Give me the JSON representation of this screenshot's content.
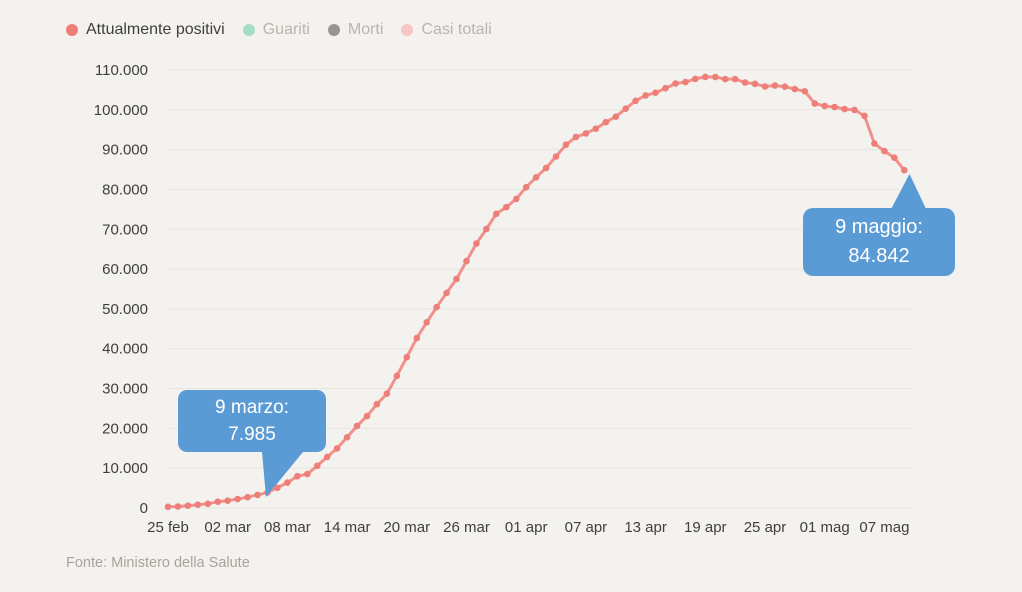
{
  "legend": {
    "items": [
      {
        "label": "Attualmente positivi",
        "dot_color": "#ee7e78",
        "label_color": "#403f3c",
        "active": true
      },
      {
        "label": "Guariti",
        "dot_color": "#a5dcc8",
        "label_color": "#b9b5ad",
        "active": false
      },
      {
        "label": "Morti",
        "dot_color": "#97958e",
        "label_color": "#b9b5ad",
        "active": false
      },
      {
        "label": "Casi totali",
        "dot_color": "#f6c6c3",
        "label_color": "#b9b5ad",
        "active": false
      }
    ]
  },
  "tooltips": [
    {
      "line1": "9 marzo:",
      "line2": "7.985"
    },
    {
      "line1": "9 maggio:",
      "line2": "84.842"
    }
  ],
  "footer": {
    "source": "Fonte: Ministero della Salute"
  },
  "colors": {
    "line": "#f1908c",
    "marker": "#ee7e78",
    "grid": "#e8e5de",
    "tooltip": "#5b9bd5",
    "background": "#f4f2ee",
    "axis_text": "#403f3c"
  },
  "chart_data": {
    "type": "line",
    "title": "",
    "xlabel": "",
    "ylabel": "",
    "ylim": [
      0,
      110000
    ],
    "grid": "horizontal",
    "legend_position": "top-left",
    "y_tick_values": [
      0,
      10000,
      20000,
      30000,
      40000,
      50000,
      60000,
      70000,
      80000,
      90000,
      100000,
      110000
    ],
    "y_tick_labels": [
      "0",
      "10.000",
      "20.000",
      "30.000",
      "40.000",
      "50.000",
      "60.000",
      "70.000",
      "80.000",
      "90.000",
      "100.000",
      "110.000"
    ],
    "x_tick_labels": [
      "25 feb",
      "02 mar",
      "08 mar",
      "14 mar",
      "20 mar",
      "26 mar",
      "01 apr",
      "07 apr",
      "13 apr",
      "19 apr",
      "25 apr",
      "01 mag",
      "07 mag"
    ],
    "x_tick_day_index": [
      0,
      6,
      12,
      18,
      24,
      30,
      36,
      42,
      48,
      54,
      60,
      66,
      72
    ],
    "dates": [
      "25 feb",
      "26 feb",
      "27 feb",
      "28 feb",
      "29 feb",
      "01 mar",
      "02 mar",
      "03 mar",
      "04 mar",
      "05 mar",
      "06 mar",
      "07 mar",
      "08 mar",
      "09 mar",
      "10 mar",
      "11 mar",
      "12 mar",
      "13 mar",
      "14 mar",
      "15 mar",
      "16 mar",
      "17 mar",
      "18 mar",
      "19 mar",
      "20 mar",
      "21 mar",
      "22 mar",
      "23 mar",
      "24 mar",
      "25 mar",
      "26 mar",
      "27 mar",
      "28 mar",
      "29 mar",
      "30 mar",
      "31 mar",
      "01 apr",
      "02 apr",
      "03 apr",
      "04 apr",
      "05 apr",
      "06 apr",
      "07 apr",
      "08 apr",
      "09 apr",
      "10 apr",
      "11 apr",
      "12 apr",
      "13 apr",
      "14 apr",
      "15 apr",
      "16 apr",
      "17 apr",
      "18 apr",
      "19 apr",
      "20 apr",
      "21 apr",
      "22 apr",
      "23 apr",
      "24 apr",
      "25 apr",
      "26 apr",
      "27 apr",
      "28 apr",
      "29 apr",
      "30 apr",
      "01 mag",
      "02 mag",
      "03 mag",
      "04 mag",
      "05 mag",
      "06 mag",
      "07 mag",
      "08 mag",
      "09 mag"
    ],
    "series": [
      {
        "name": "Attualmente positivi",
        "values": [
          311,
          385,
          588,
          821,
          1049,
          1577,
          1835,
          2263,
          2706,
          3296,
          3916,
          5061,
          6387,
          7985,
          8514,
          10590,
          12839,
          14955,
          17750,
          20603,
          23073,
          26062,
          28710,
          33190,
          37860,
          42681,
          46638,
          50418,
          54030,
          57521,
          62013,
          66414,
          70065,
          73880,
          75528,
          77635,
          80572,
          83049,
          85388,
          88274,
          91246,
          93187,
          94067,
          95262,
          96877,
          98273,
          100269,
          102253,
          103616,
          104291,
          105418,
          106607,
          106962,
          107771,
          108257,
          108237,
          107709,
          107699,
          106848,
          106527,
          105847,
          106103,
          105813,
          105205,
          104657,
          101551,
          100943,
          100704,
          100179,
          99980,
          98467,
          91528,
          89624,
          87961,
          84842
        ]
      }
    ],
    "annotations": [
      {
        "date": "09 mar",
        "label": "9 marzo: 7.985",
        "value": 7985
      },
      {
        "date": "09 mag",
        "label": "9 maggio: 84.842",
        "value": 84842
      }
    ]
  }
}
